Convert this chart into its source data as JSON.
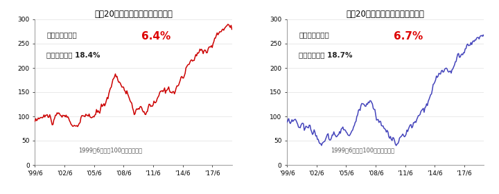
{
  "title_left": "過去20年の全世界株式指数の推移",
  "title_right": "過去20年の先進国株式指数の推移",
  "annotation": "1999年6月末＝100として指数化",
  "return_label": "年率リターン：",
  "risk_label": "年率リスク：",
  "return_left": "6.4%",
  "risk_left": "18.4%",
  "return_right": "6.7%",
  "risk_right": "18.7%",
  "line_color_left": "#cc0000",
  "line_color_right": "#4444bb",
  "return_color": "#dd0000",
  "bg_color": "#ffffff",
  "ylim": [
    0,
    300
  ],
  "yticks": [
    0,
    50,
    100,
    150,
    200,
    250,
    300
  ],
  "xtick_labels": [
    "'99/6",
    "'02/6",
    "'05/6",
    "'08/6",
    "'11/6",
    "'14/6",
    "'17/6"
  ],
  "title_fontsize": 8.5,
  "label_fontsize": 7.5,
  "annot_fontsize": 6.5,
  "return_fontsize": 11
}
